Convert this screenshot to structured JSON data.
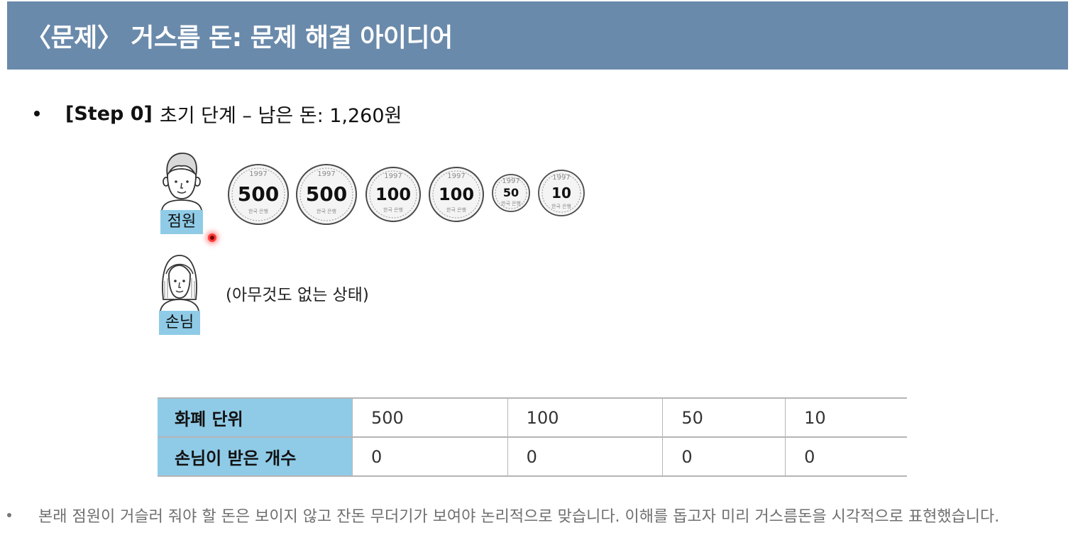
{
  "header": {
    "title": "〈문제〉 거스름 돈: 문제 해결 아이디어"
  },
  "step": {
    "label": "[Step 0]",
    "text": "초기 단계 – 남은 돈: 1,260원"
  },
  "clerk": {
    "label": "점원"
  },
  "customer": {
    "label": "손님",
    "status_text": "(아무것도 없는 상태)"
  },
  "coins": [
    {
      "year": "1997",
      "value": "500",
      "bank": "한국 은행"
    },
    {
      "year": "1997",
      "value": "500",
      "bank": "한국 은행"
    },
    {
      "year": "1997",
      "value": "100",
      "bank": "한국 은행"
    },
    {
      "year": "1997",
      "value": "100",
      "bank": "한국 은행"
    },
    {
      "year": "1997",
      "value": "50",
      "bank": "한국 은행"
    },
    {
      "year": "1997",
      "value": "10",
      "bank": "한국 은행"
    }
  ],
  "table": {
    "rows": [
      {
        "header": "화폐 단위",
        "cells": [
          "500",
          "100",
          "50",
          "10"
        ]
      },
      {
        "header": "손님이 받은 개수",
        "cells": [
          "0",
          "0",
          "0",
          "0"
        ]
      }
    ]
  },
  "footnote": {
    "text": "본래 점원이 거슬러 줘야 할 돈은 보이지 않고 잔돈 무더기가 보여야 논리적으로 맞습니다. 이해를 돕고자 미리 거스름돈을 시각적으로 표현했습니다."
  }
}
